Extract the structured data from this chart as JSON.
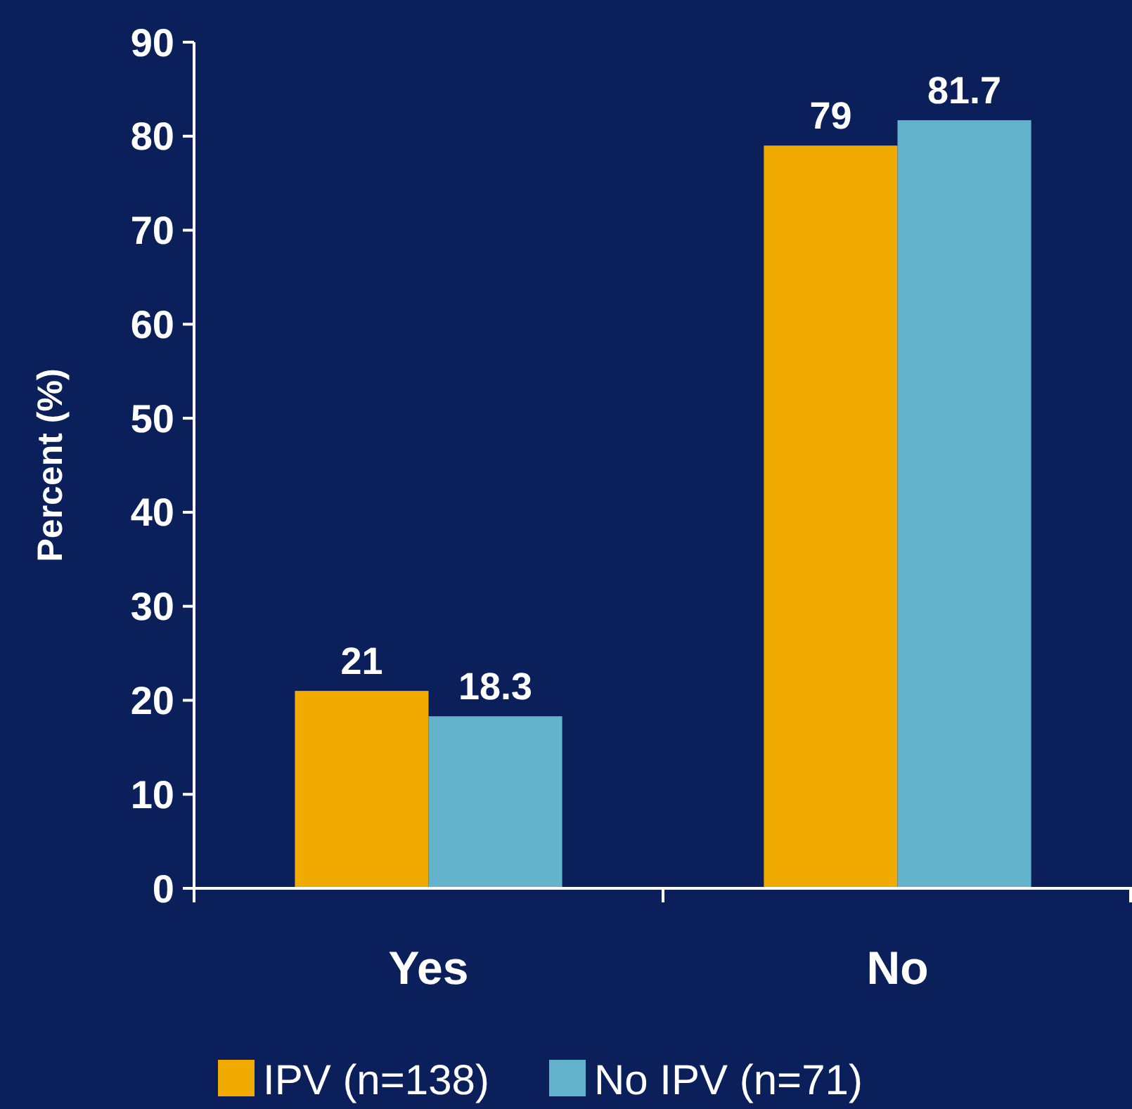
{
  "chart_data": {
    "type": "bar",
    "ylabel": "Percent (%)",
    "categories": [
      "Yes",
      "No"
    ],
    "series": [
      {
        "name": "IPV (n=138)",
        "color": "#f0aa00",
        "values": [
          21,
          79
        ]
      },
      {
        "name": "No IPV (n=71)",
        "color": "#62b3cb",
        "values": [
          18.3,
          81.7
        ]
      }
    ],
    "ylim": [
      0,
      90
    ],
    "yticks": [
      0,
      10,
      20,
      30,
      40,
      50,
      60,
      70,
      80,
      90
    ],
    "data_labels": true,
    "legend": "bottom",
    "grid": false
  }
}
